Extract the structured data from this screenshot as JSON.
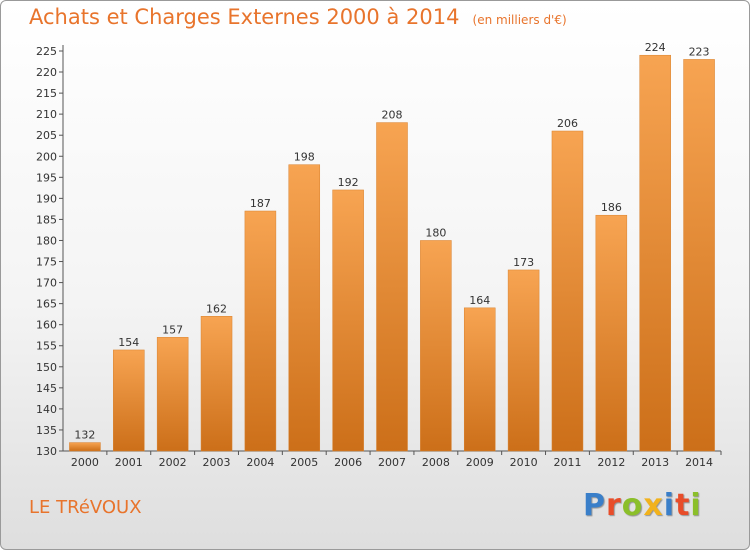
{
  "title": "Achats et Charges Externes 2000 à 2014",
  "unit": "(en milliers d'€)",
  "commune": "LE TRéVOUX",
  "logo_text": "Proxiti",
  "logo_colors": [
    "#3a7fc9",
    "#e84d2a",
    "#8bbf2a",
    "#f2b21c",
    "#3a7fc9",
    "#e84d2a",
    "#8bbf2a"
  ],
  "colors": {
    "bar_top": "#f7a452",
    "bar_bottom": "#cc6f19",
    "title": "#e8742c"
  },
  "chart_data": {
    "type": "bar",
    "categories": [
      "2000",
      "2001",
      "2002",
      "2003",
      "2004",
      "2005",
      "2006",
      "2007",
      "2008",
      "2009",
      "2010",
      "2011",
      "2012",
      "2013",
      "2014"
    ],
    "values": [
      132,
      154,
      157,
      162,
      187,
      198,
      192,
      208,
      180,
      164,
      173,
      206,
      186,
      224,
      223
    ],
    "ylim": [
      130,
      225
    ],
    "ytick_step": 5,
    "grid": false
  }
}
